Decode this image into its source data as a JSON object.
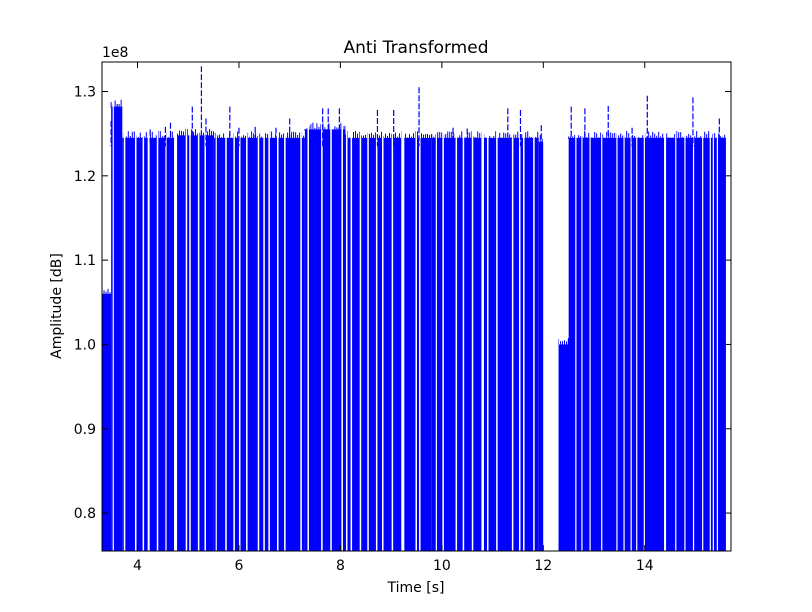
{
  "chart_data": {
    "type": "bar",
    "title": "Anti Transformed",
    "xlabel": "Time [s]",
    "ylabel": "Amplitude [dB]",
    "y_offset_label": "1e8",
    "xlim": [
      3.3,
      15.7
    ],
    "ylim": [
      75500000,
      133500000
    ],
    "x_ticks": [
      4,
      6,
      8,
      10,
      12,
      14
    ],
    "x_tick_labels": [
      "4",
      "6",
      "8",
      "10",
      "12",
      "14"
    ],
    "y_ticks": [
      80000000,
      90000000,
      100000000,
      110000000,
      120000000,
      130000000
    ],
    "y_tick_labels": [
      "0.8",
      "0.9",
      "1.0",
      "1.1",
      "1.2",
      "1.3"
    ],
    "grid": false,
    "series_color": "#0000ff",
    "dense_segments": [
      {
        "x_start": 3.3,
        "x_end": 3.48,
        "amplitude": 106000000
      },
      {
        "x_start": 3.48,
        "x_end": 3.7,
        "amplitude": 128200000
      },
      {
        "x_start": 3.7,
        "x_end": 4.75,
        "amplitude": 124500000
      },
      {
        "x_start": 4.75,
        "x_end": 5.5,
        "amplitude": 124800000
      },
      {
        "x_start": 5.5,
        "x_end": 7.3,
        "amplitude": 124500000
      },
      {
        "x_start": 7.3,
        "x_end": 8.1,
        "amplitude": 125500000
      },
      {
        "x_start": 8.1,
        "x_end": 9.8,
        "amplitude": 124500000
      },
      {
        "x_start": 9.8,
        "x_end": 11.9,
        "amplitude": 124500000
      },
      {
        "x_start": 11.9,
        "x_end": 12.0,
        "amplitude": 124000000
      },
      {
        "x_start": 12.3,
        "x_end": 12.5,
        "amplitude": 100000000
      },
      {
        "x_start": 12.5,
        "x_end": 15.6,
        "amplitude": 124500000
      }
    ],
    "gaps": [
      [
        3.51,
        3.53
      ],
      [
        3.73,
        3.76
      ],
      [
        3.95,
        3.98
      ],
      [
        4.1,
        4.13
      ],
      [
        4.2,
        4.24
      ],
      [
        4.38,
        4.41
      ],
      [
        4.55,
        4.57
      ],
      [
        4.72,
        4.78
      ],
      [
        4.95,
        4.98
      ],
      [
        5.02,
        5.05
      ],
      [
        5.19,
        5.22
      ],
      [
        5.32,
        5.35
      ],
      [
        5.54,
        5.56
      ],
      [
        5.73,
        5.76
      ],
      [
        5.89,
        5.92
      ],
      [
        6.0,
        6.03
      ],
      [
        6.14,
        6.17
      ],
      [
        6.37,
        6.4
      ],
      [
        6.48,
        6.51
      ],
      [
        6.58,
        6.61
      ],
      [
        6.75,
        6.78
      ],
      [
        6.89,
        6.92
      ],
      [
        7.21,
        7.24
      ],
      [
        7.35,
        7.38
      ],
      [
        7.62,
        7.65
      ],
      [
        7.8,
        7.83
      ],
      [
        8.02,
        8.05
      ],
      [
        8.11,
        8.14
      ],
      [
        8.2,
        8.23
      ],
      [
        8.38,
        8.41
      ],
      [
        8.53,
        8.56
      ],
      [
        8.7,
        8.73
      ],
      [
        8.82,
        8.85
      ],
      [
        9.01,
        9.04
      ],
      [
        9.2,
        9.26
      ],
      [
        9.48,
        9.51
      ],
      [
        9.55,
        9.58
      ],
      [
        9.88,
        9.9
      ],
      [
        10.01,
        10.04
      ],
      [
        10.27,
        10.3
      ],
      [
        10.41,
        10.44
      ],
      [
        10.59,
        10.62
      ],
      [
        10.78,
        10.83
      ],
      [
        10.89,
        10.92
      ],
      [
        11.07,
        11.1
      ],
      [
        11.38,
        11.41
      ],
      [
        11.52,
        11.55
      ],
      [
        11.6,
        11.63
      ],
      [
        11.8,
        11.83
      ],
      [
        12.0,
        12.3
      ],
      [
        12.63,
        12.65
      ],
      [
        12.75,
        12.77
      ],
      [
        12.91,
        12.93
      ],
      [
        13.14,
        13.16
      ],
      [
        13.44,
        13.46
      ],
      [
        13.58,
        13.6
      ],
      [
        13.72,
        13.74
      ],
      [
        13.83,
        13.85
      ],
      [
        13.98,
        14.0
      ],
      [
        14.38,
        14.42
      ],
      [
        14.6,
        14.62
      ],
      [
        14.78,
        14.8
      ],
      [
        14.95,
        14.97
      ],
      [
        15.13,
        15.15
      ],
      [
        15.28,
        15.3
      ],
      [
        15.34,
        15.36
      ],
      [
        15.42,
        15.44
      ]
    ],
    "spikes": [
      {
        "x": 3.48,
        "y": 126500000
      },
      {
        "x": 3.6,
        "y": 128500000
      },
      {
        "x": 4.25,
        "y": 125500000
      },
      {
        "x": 4.55,
        "y": 125800000
      },
      {
        "x": 4.65,
        "y": 126300000
      },
      {
        "x": 5.08,
        "y": 128200000
      },
      {
        "x": 5.26,
        "y": 133000000
      },
      {
        "x": 5.35,
        "y": 126800000
      },
      {
        "x": 5.82,
        "y": 128200000
      },
      {
        "x": 6.0,
        "y": 125700000
      },
      {
        "x": 6.32,
        "y": 125800000
      },
      {
        "x": 6.73,
        "y": 125700000
      },
      {
        "x": 7.0,
        "y": 126800000
      },
      {
        "x": 7.65,
        "y": 128000000
      },
      {
        "x": 7.76,
        "y": 128000000
      },
      {
        "x": 7.98,
        "y": 128000000
      },
      {
        "x": 8.73,
        "y": 127800000
      },
      {
        "x": 9.05,
        "y": 127800000
      },
      {
        "x": 9.55,
        "y": 130500000
      },
      {
        "x": 10.22,
        "y": 125700000
      },
      {
        "x": 10.5,
        "y": 125600000
      },
      {
        "x": 11.3,
        "y": 128000000
      },
      {
        "x": 11.55,
        "y": 127800000
      },
      {
        "x": 11.96,
        "y": 126000000
      },
      {
        "x": 12.55,
        "y": 128200000
      },
      {
        "x": 12.82,
        "y": 128000000
      },
      {
        "x": 13.28,
        "y": 128300000
      },
      {
        "x": 13.75,
        "y": 125700000
      },
      {
        "x": 14.05,
        "y": 129500000
      },
      {
        "x": 14.95,
        "y": 129300000
      },
      {
        "x": 15.47,
        "y": 126800000
      }
    ]
  }
}
